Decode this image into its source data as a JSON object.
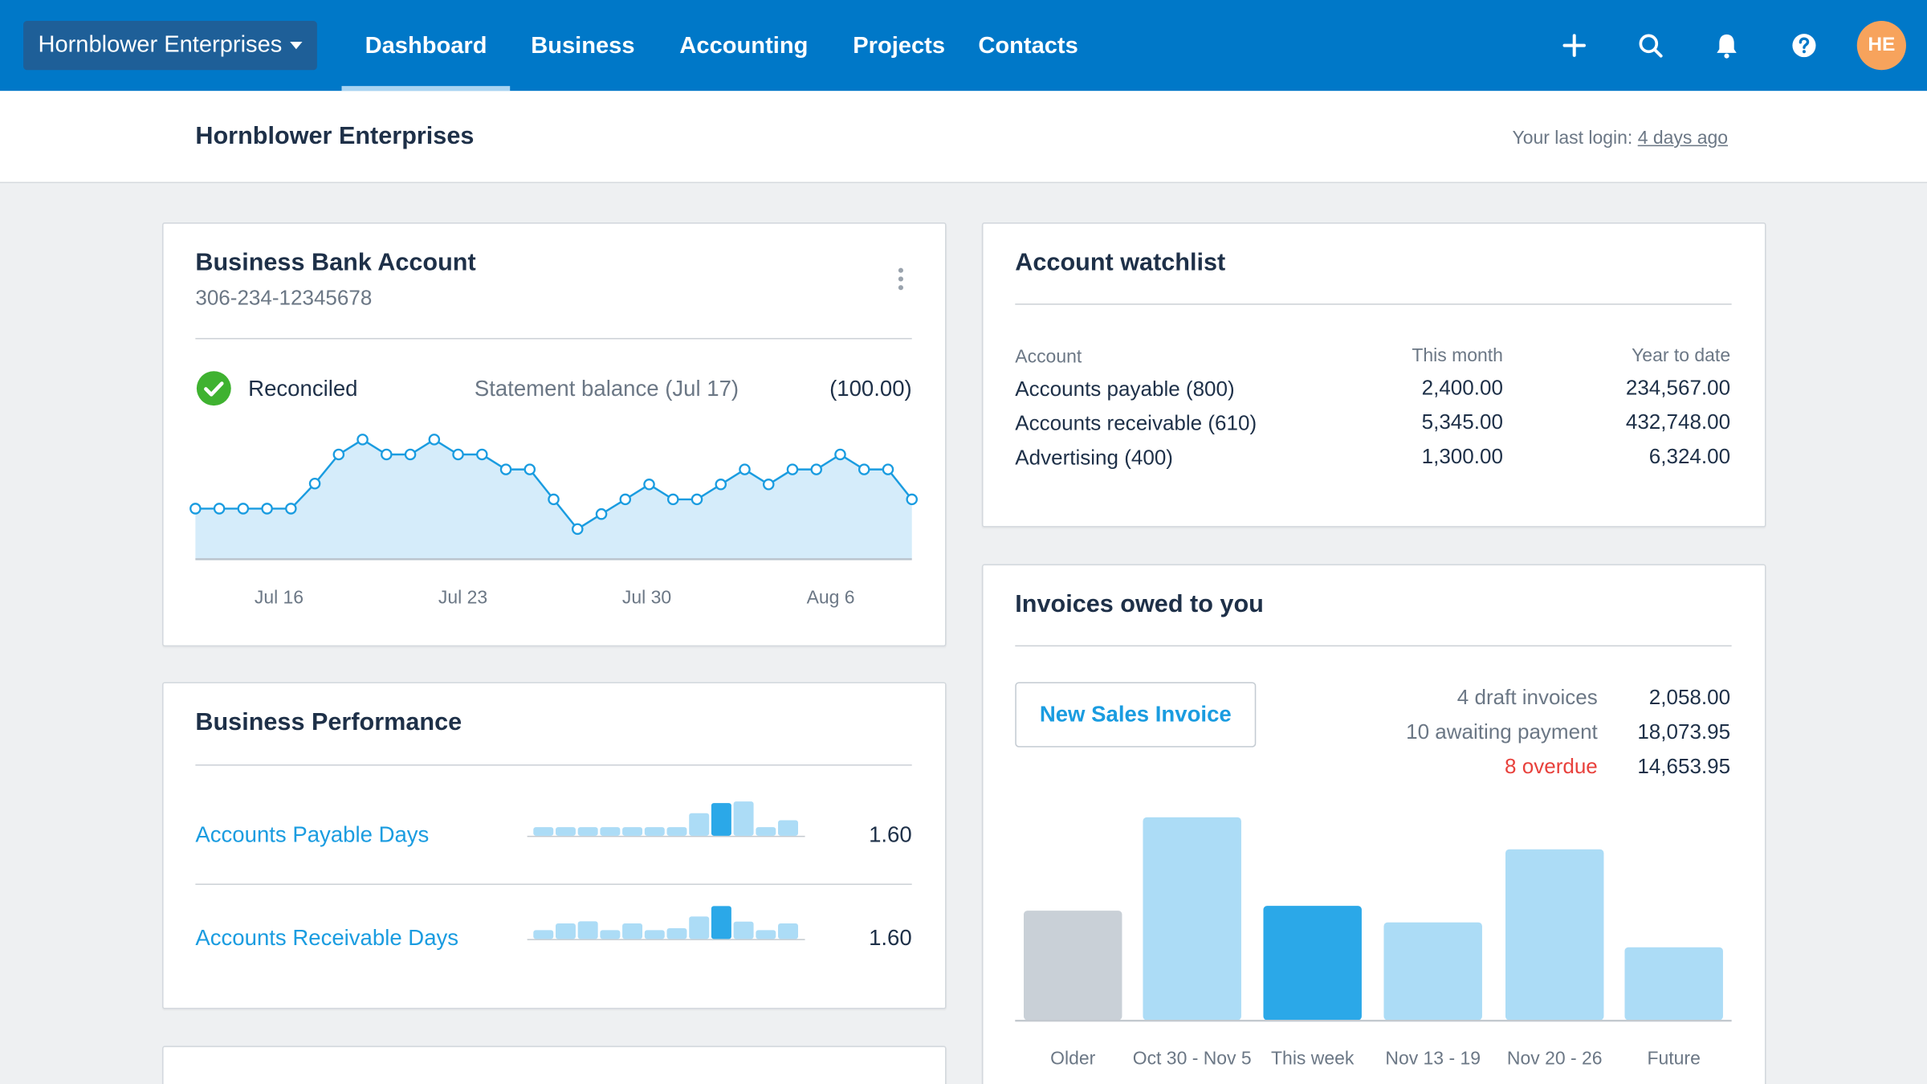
{
  "topbar": {
    "org_name": "Hornblower Enterprises",
    "nav": [
      "Dashboard",
      "Business",
      "Accounting",
      "Projects",
      "Contacts"
    ],
    "active_nav": "Dashboard",
    "icons": [
      "plus-icon",
      "search-icon",
      "bell-icon",
      "help-icon"
    ],
    "avatar_initials": "HE",
    "brand_color": "#0078c8",
    "avatar_color": "#f7a35c"
  },
  "header": {
    "title": "Hornblower Enterprises",
    "last_login_label": "Your last login:",
    "last_login_value": "4 days ago"
  },
  "bank_account": {
    "title": "Business Bank Account",
    "number": "306-234-12345678",
    "status": "Reconciled",
    "statement_label": "Statement balance (Jul 17)",
    "statement_value": "(100.00)",
    "chart_data": {
      "type": "area",
      "values": [
        186,
        186,
        186,
        186,
        186,
        278,
        385,
        440,
        385,
        385,
        440,
        385,
        385,
        330,
        330,
        220,
        111,
        166,
        220,
        275,
        220,
        220,
        275,
        330,
        275,
        330,
        330,
        385,
        330,
        330,
        220
      ],
      "ylim": [
        0,
        470
      ],
      "x_ticks": [
        {
          "label": "Jul 16",
          "at": 3.5
        },
        {
          "label": "Jul 23",
          "at": 11.2
        },
        {
          "label": "Jul 30",
          "at": 18.9
        },
        {
          "label": "Aug 6",
          "at": 26.6
        }
      ],
      "color": "#1a9ce0",
      "fill": "#d5ecfa"
    }
  },
  "performance": {
    "title": "Business Performance",
    "rows": [
      {
        "label": "Accounts Payable Days",
        "value": "1.60",
        "bars": [
          32,
          32,
          32,
          32,
          32,
          32,
          32,
          84,
          122,
          128,
          32,
          58
        ],
        "highlight": 8
      },
      {
        "label": "Accounts Receivable Days",
        "value": "1.60",
        "bars": [
          33,
          58,
          66,
          33,
          58,
          33,
          40,
          84,
          123,
          65,
          33,
          58
        ],
        "highlight": 8
      }
    ]
  },
  "watchlist": {
    "title": "Account watchlist",
    "columns": [
      "Account",
      "This month",
      "Year to date"
    ],
    "rows": [
      [
        "Accounts payable (800)",
        "2,400.00",
        "234,567.00"
      ],
      [
        "Accounts receivable (610)",
        "5,345.00",
        "432,748.00"
      ],
      [
        "Advertising (400)",
        "1,300.00",
        "6,324.00"
      ]
    ]
  },
  "invoices": {
    "title": "Invoices owed to you",
    "new_button": "New Sales Invoice",
    "stats": [
      {
        "label": "4 draft invoices",
        "value": "2,058.00",
        "status": "normal"
      },
      {
        "label": "10 awaiting payment",
        "value": "18,073.95",
        "status": "normal"
      },
      {
        "label": "8 overdue",
        "value": "14,653.95",
        "status": "overdue"
      }
    ],
    "overdue_color": "#e8413c",
    "chart_data": {
      "type": "bar",
      "categories": [
        "Older",
        "Oct 30 - Nov 5",
        "This week",
        "Nov 13 - 19",
        "Nov 20 - 26",
        "Future"
      ],
      "values": [
        410,
        760,
        428,
        366,
        640,
        273
      ],
      "colors": [
        "#c9d0d7",
        "#acdcf6",
        "#2ba8e8",
        "#acdcf6",
        "#acdcf6",
        "#acdcf6"
      ],
      "ylim": [
        0,
        800
      ]
    }
  }
}
